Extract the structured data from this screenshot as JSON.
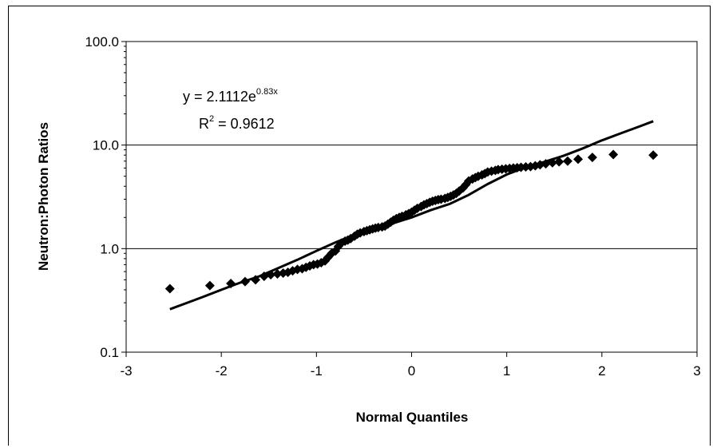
{
  "chart_data": {
    "type": "scatter",
    "title": "",
    "xlabel": "Normal Quantiles",
    "ylabel": "Neutron:Photon Ratios",
    "xlim": [
      -3,
      3
    ],
    "ylim": [
      0.1,
      100
    ],
    "yscale": "log",
    "x_ticks": [
      "-3",
      "-2",
      "-1",
      "0",
      "1",
      "2",
      "3"
    ],
    "y_ticks": [
      "0.1",
      "1.0",
      "10.0",
      "100.0"
    ],
    "grid": "horizontal major gridlines at 1.0 and 10.0",
    "legend": "none",
    "series": [
      {
        "name": "",
        "marker": "diamond",
        "color": "#000000",
        "x": [
          -2.54,
          -2.12,
          -1.9,
          -1.75,
          -1.64,
          -1.55,
          -1.48,
          -1.41,
          -1.35,
          -1.3,
          -1.25,
          -1.2,
          -1.15,
          -1.11,
          -1.07,
          -1.03,
          -0.99,
          -0.95,
          -0.91,
          -0.88,
          -0.84,
          -0.8,
          -0.77,
          -0.74,
          -0.7,
          -0.67,
          -0.64,
          -0.6,
          -0.57,
          -0.54,
          -0.5,
          -0.47,
          -0.44,
          -0.41,
          -0.38,
          -0.35,
          -0.31,
          -0.28,
          -0.25,
          -0.22,
          -0.19,
          -0.16,
          -0.13,
          -0.1,
          -0.06,
          -0.03,
          0.0,
          0.03,
          0.06,
          0.1,
          0.13,
          0.16,
          0.19,
          0.22,
          0.25,
          0.28,
          0.31,
          0.35,
          0.38,
          0.41,
          0.44,
          0.47,
          0.5,
          0.54,
          0.57,
          0.6,
          0.64,
          0.67,
          0.7,
          0.74,
          0.77,
          0.8,
          0.84,
          0.88,
          0.91,
          0.95,
          0.99,
          1.03,
          1.07,
          1.11,
          1.15,
          1.2,
          1.25,
          1.3,
          1.35,
          1.41,
          1.48,
          1.55,
          1.64,
          1.75,
          1.9,
          2.12,
          2.54
        ],
        "y": [
          0.41,
          0.44,
          0.46,
          0.48,
          0.5,
          0.54,
          0.56,
          0.57,
          0.58,
          0.59,
          0.61,
          0.63,
          0.64,
          0.66,
          0.68,
          0.7,
          0.71,
          0.73,
          0.76,
          0.82,
          0.9,
          0.95,
          1.05,
          1.13,
          1.18,
          1.21,
          1.25,
          1.32,
          1.38,
          1.42,
          1.46,
          1.49,
          1.52,
          1.55,
          1.58,
          1.6,
          1.62,
          1.65,
          1.72,
          1.8,
          1.88,
          1.95,
          2.0,
          2.05,
          2.12,
          2.18,
          2.25,
          2.35,
          2.45,
          2.55,
          2.65,
          2.72,
          2.8,
          2.87,
          2.92,
          2.97,
          3.0,
          3.05,
          3.12,
          3.2,
          3.3,
          3.42,
          3.6,
          3.85,
          4.15,
          4.5,
          4.7,
          4.85,
          5.0,
          5.15,
          5.3,
          5.5,
          5.6,
          5.7,
          5.8,
          5.85,
          5.9,
          5.95,
          6.0,
          6.05,
          6.1,
          6.15,
          6.2,
          6.3,
          6.45,
          6.6,
          6.75,
          6.9,
          7.0,
          7.3,
          7.6,
          8.1,
          8.0
        ]
      },
      {
        "name": "",
        "type": "line",
        "color": "#000000",
        "x": [
          -2.54,
          -2.4,
          -2.2,
          -2.0,
          -1.8,
          -1.6,
          -1.4,
          -1.2,
          -1.0,
          -0.8,
          -0.6,
          -0.4,
          -0.2,
          0.0,
          0.2,
          0.4,
          0.6,
          0.8,
          1.0,
          1.2,
          1.4,
          1.6,
          1.8,
          2.0,
          2.2,
          2.4,
          2.54
        ],
        "y": [
          0.26,
          0.29,
          0.34,
          0.4,
          0.47,
          0.54,
          0.65,
          0.78,
          0.95,
          1.15,
          1.36,
          1.55,
          1.75,
          2.0,
          2.35,
          2.7,
          3.3,
          4.2,
          5.2,
          6.1,
          6.9,
          7.9,
          9.3,
          11.1,
          13.0,
          15.2,
          17.0
        ]
      }
    ],
    "annotations": {
      "equation_prefix": "y = 2.1112e",
      "equation_exponent": "0.83x",
      "r2_prefix": "R",
      "r2_sup": "2",
      "r2_value": " = 0.9612"
    }
  }
}
